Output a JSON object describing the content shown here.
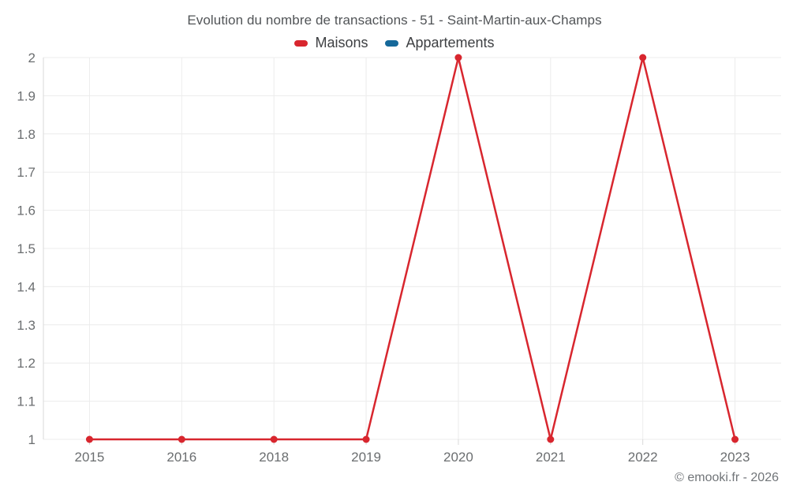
{
  "title": "Evolution du nombre de transactions - 51 - Saint-Martin-aux-Champs",
  "watermark": "© emooki.fr - 2026",
  "colors": {
    "maisons_red": "#d8262e",
    "appartements_blue": "#15689a",
    "gridline": "#ececec",
    "axis_line": "#d9d9d9",
    "tick_text": "#6b6e70",
    "title_text": "#515457",
    "legend_text": "#3e4043",
    "watermark_text": "#717579"
  },
  "legend": [
    {
      "label": "Maisons",
      "color": "#d8262e"
    },
    {
      "label": "Appartements",
      "color": "#15689a"
    }
  ],
  "chart_data": {
    "type": "line",
    "title": "Evolution du nombre de transactions - 51 - Saint-Martin-aux-Champs",
    "categories": [
      "2015",
      "2016",
      "2018",
      "2019",
      "2020",
      "2021",
      "2022",
      "2023"
    ],
    "series": [
      {
        "name": "Maisons",
        "color": "#d8262e",
        "values": [
          1,
          1,
          1,
          1,
          2,
          1,
          2,
          1
        ]
      },
      {
        "name": "Appartements",
        "color": "#15689a",
        "values": [
          null,
          null,
          null,
          null,
          null,
          null,
          null,
          null
        ]
      }
    ],
    "xlabel": "",
    "ylabel": "",
    "ylim": [
      1,
      2
    ],
    "yticks": [
      "1",
      "1.1",
      "1.2",
      "1.3",
      "1.4",
      "1.5",
      "1.6",
      "1.7",
      "1.8",
      "1.9",
      "2"
    ],
    "grid": true,
    "legend_position": "top",
    "marker": "circle"
  }
}
